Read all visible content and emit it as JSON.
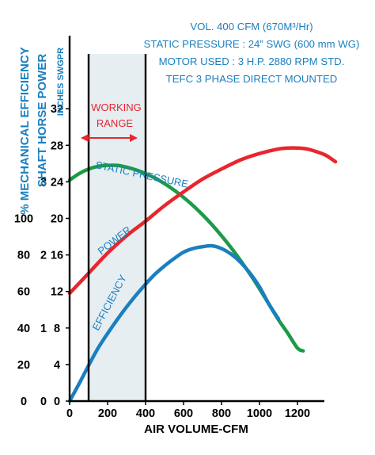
{
  "specs": {
    "line1": "VOL. 400 CFM (670M³/Hr)",
    "line2": "STATIC PRESSURE : 24” SWG (600 mm WG)",
    "line3": "MOTOR USED : 3 H.P. 2880 RPM STD.",
    "line4": "TEFC 3 PHASE DIRECT MOUNTED"
  },
  "working_range_label": [
    "WORKING",
    "RANGE"
  ],
  "colors": {
    "accent_blue": "#1a7fbf",
    "working_red": "#e8262d",
    "band_fill": "#e6eef2",
    "axis": "#000000"
  },
  "chart_data": {
    "type": "line",
    "xlabel": "AIR VOLUME-CFM",
    "xlim": [
      0,
      1400
    ],
    "x_ticks": [
      0,
      200,
      400,
      600,
      800,
      1000,
      1200
    ],
    "ylabel_efficiency": "% MECHANICAL EFFICIENCY",
    "ylabel_power": "SHAFT HORSE POWER",
    "ylabel_pressure": "INCHES SWGPR",
    "efficiency_ticks": [
      0,
      20,
      40,
      60,
      80,
      100
    ],
    "power_ticks": [
      0,
      1,
      2,
      3
    ],
    "pressure_ticks": [
      0,
      4,
      8,
      12,
      16,
      20,
      24,
      28,
      32
    ],
    "pressure_lim": [
      0,
      40
    ],
    "working_range": [
      100,
      400
    ],
    "grid": false,
    "series": [
      {
        "name": "STATIC PRESSURE",
        "color": "#1c9a48",
        "x": [
          0,
          50,
          100,
          150,
          200,
          250,
          300,
          350,
          400,
          450,
          500,
          550,
          600,
          650,
          700,
          750,
          800,
          850,
          900,
          950,
          1000,
          1050,
          1100,
          1150,
          1200,
          1230
        ],
        "y": [
          24.2,
          24.9,
          25.4,
          25.7,
          25.8,
          25.8,
          25.6,
          25.3,
          24.9,
          24.4,
          23.8,
          23.1,
          22.3,
          21.4,
          20.4,
          19.3,
          18.1,
          16.8,
          15.4,
          13.9,
          12.3,
          10.6,
          8.9,
          7.4,
          5.8,
          5.5
        ]
      },
      {
        "name": "POWER",
        "color": "#e8262d",
        "x": [
          0,
          100,
          200,
          300,
          400,
          500,
          600,
          700,
          800,
          900,
          1000,
          1100,
          1150,
          1200,
          1250,
          1300,
          1350,
          1400
        ],
        "y": [
          11.8,
          14,
          16.2,
          18.1,
          19.7,
          21.4,
          22.9,
          24.3,
          25.4,
          26.4,
          27.1,
          27.6,
          27.7,
          27.7,
          27.6,
          27.3,
          26.9,
          26.2
        ]
      },
      {
        "name": "EFFICIENCY",
        "color": "#1a7fbf",
        "x": [
          0,
          50,
          100,
          150,
          200,
          250,
          300,
          350,
          400,
          450,
          500,
          550,
          600,
          650,
          700,
          750,
          800,
          850,
          900,
          950,
          1000,
          1050,
          1100
        ],
        "y": [
          0,
          1.9,
          3.9,
          5.8,
          7.4,
          8.9,
          10.3,
          11.6,
          12.8,
          13.9,
          14.8,
          15.6,
          16.3,
          16.7,
          16.9,
          17,
          16.7,
          16.1,
          15.2,
          14,
          12.5,
          10.6,
          9
        ]
      }
    ]
  }
}
